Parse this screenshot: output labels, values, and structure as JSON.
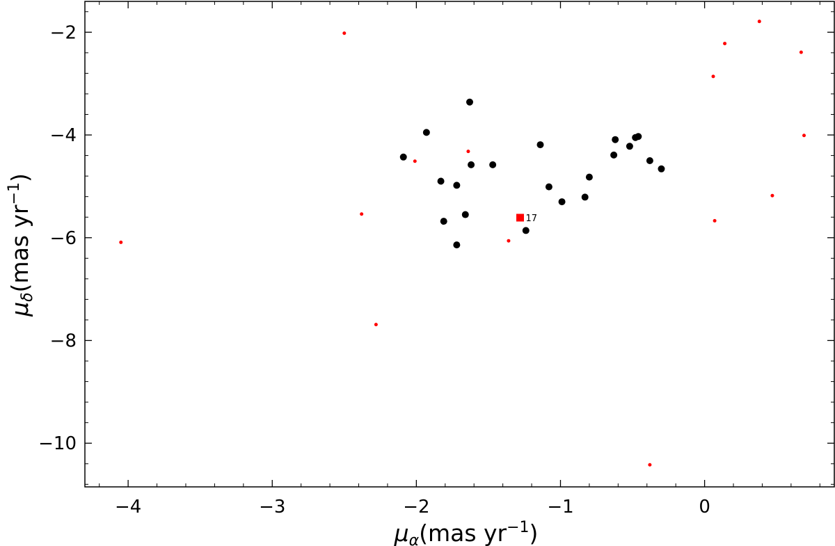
{
  "chart_data": {
    "type": "scatter",
    "xlabel": {
      "symbol": "μ",
      "sub": "α",
      "text": "(mas yr",
      "sup": "−1",
      "close": ")"
    },
    "ylabel": {
      "symbol": "μ",
      "sub": "δ",
      "text": "(mas yr",
      "sup": "−1",
      "close": ")"
    },
    "xlim": [
      -4.3,
      0.9
    ],
    "ylim": [
      -10.85,
      -1.4
    ],
    "xticks": [
      -4,
      -3,
      -2,
      -1,
      0
    ],
    "xtick_labels": [
      "−4",
      "−3",
      "−2",
      "−1",
      "0"
    ],
    "yticks": [
      -10,
      -8,
      -6,
      -4,
      -2
    ],
    "ytick_labels": [
      "−10",
      "−8",
      "−6",
      "−4",
      "−2"
    ],
    "grid": false,
    "series": [
      {
        "color": "#000000",
        "marker": "circle",
        "points": [
          [
            -1.63,
            -3.36
          ],
          [
            -1.93,
            -3.95
          ],
          [
            -2.09,
            -4.43
          ],
          [
            -1.62,
            -4.58
          ],
          [
            -1.47,
            -4.58
          ],
          [
            -1.83,
            -4.9
          ],
          [
            -1.72,
            -4.98
          ],
          [
            -1.81,
            -5.68
          ],
          [
            -1.66,
            -5.55
          ],
          [
            -1.72,
            -6.14
          ],
          [
            -1.14,
            -4.19
          ],
          [
            -1.08,
            -5.01
          ],
          [
            -0.99,
            -5.3
          ],
          [
            -1.24,
            -5.86
          ],
          [
            -0.83,
            -5.21
          ],
          [
            -0.8,
            -4.82
          ],
          [
            -0.63,
            -4.39
          ],
          [
            -0.62,
            -4.09
          ],
          [
            -0.52,
            -4.22
          ],
          [
            -0.48,
            -4.05
          ],
          [
            -0.46,
            -4.03
          ],
          [
            -0.38,
            -4.5
          ],
          [
            -0.3,
            -4.66
          ]
        ]
      },
      {
        "color": "#ff0000",
        "marker": "small-circle",
        "points": [
          [
            -2.5,
            -2.02
          ],
          [
            -4.05,
            -6.09
          ],
          [
            -2.38,
            -5.54
          ],
          [
            -2.28,
            -7.69
          ],
          [
            -2.01,
            -4.51
          ],
          [
            -1.64,
            -4.32
          ],
          [
            -1.36,
            -6.06
          ],
          [
            0.06,
            -2.86
          ],
          [
            0.14,
            -2.22
          ],
          [
            0.38,
            -1.79
          ],
          [
            0.67,
            -2.39
          ],
          [
            0.69,
            -4.01
          ],
          [
            0.07,
            -5.67
          ],
          [
            0.47,
            -5.18
          ],
          [
            -0.38,
            -10.42
          ]
        ]
      },
      {
        "color": "#ff0000",
        "marker": "square",
        "points": [
          [
            -1.28,
            -5.61
          ]
        ]
      }
    ],
    "annotations": [
      {
        "text": "17",
        "x": -1.28,
        "y": -5.61
      }
    ]
  }
}
